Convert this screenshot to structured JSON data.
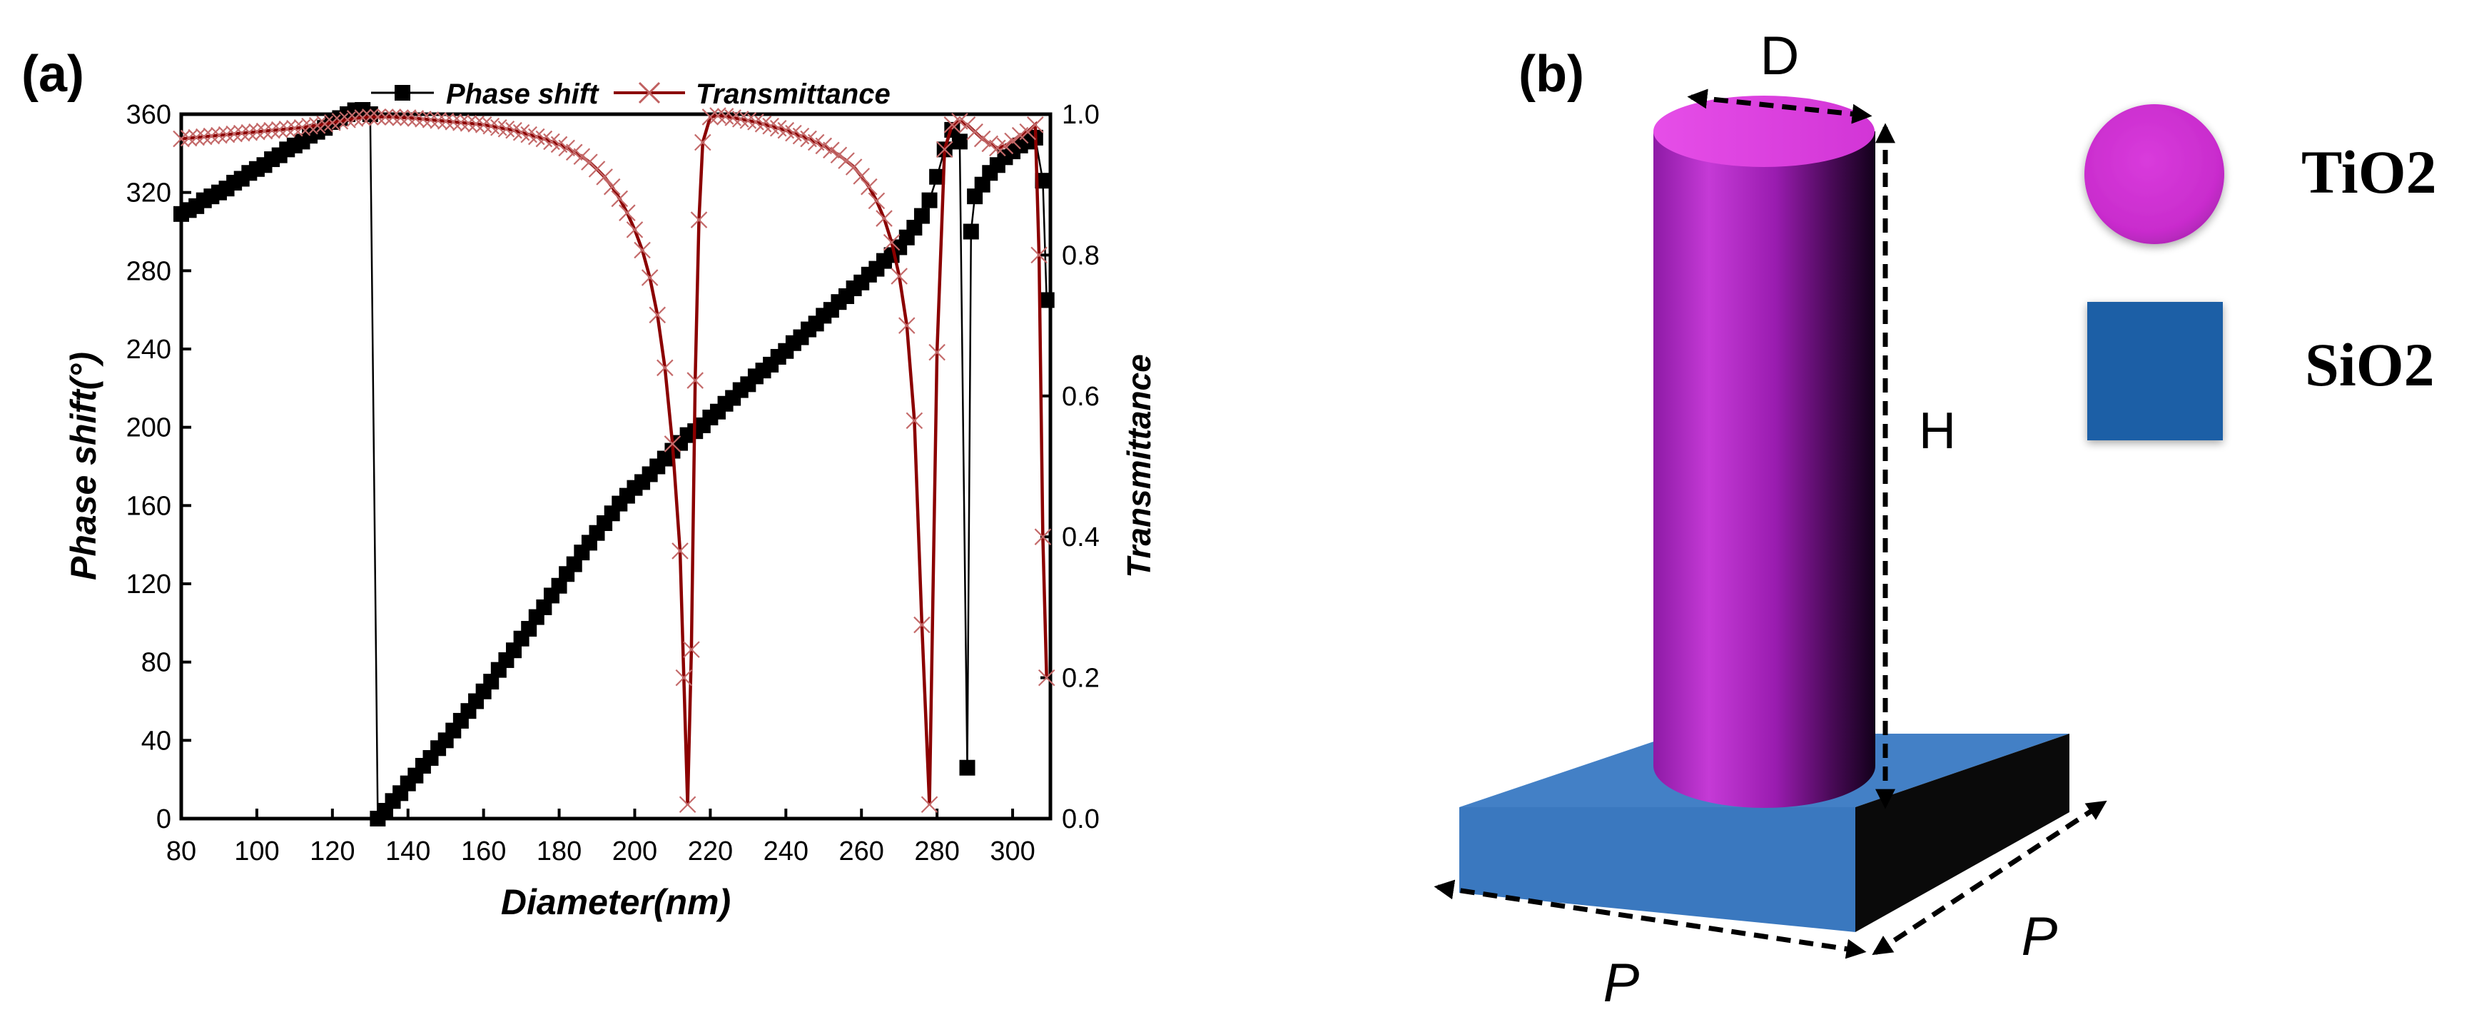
{
  "panel_a": {
    "label": "(a)"
  },
  "panel_b": {
    "label": "(b)",
    "dimension_d": "D",
    "dimension_h": "H",
    "dimension_p_front": "P",
    "dimension_p_side": "P",
    "legend": [
      {
        "name": "TiO2",
        "shape": "circle",
        "color": "#d12fd6"
      },
      {
        "name": "SiO2",
        "shape": "square",
        "color": "#1f5fa6"
      }
    ],
    "pillar_color": "#b524c8",
    "substrate_color": "#3f7dc8"
  },
  "chart_data": {
    "type": "line",
    "xlabel": "Diameter(nm)",
    "ylabel": "Phase shift(°)",
    "y2label": "Transmittance",
    "xlim": [
      80,
      310
    ],
    "ylim": [
      0,
      360
    ],
    "y2lim": [
      0,
      1.0
    ],
    "xticks": [
      80,
      100,
      120,
      140,
      160,
      180,
      200,
      220,
      240,
      260,
      280,
      300
    ],
    "yticks": [
      0,
      40,
      80,
      120,
      160,
      200,
      240,
      280,
      320,
      360
    ],
    "y2ticks": [
      "0.0",
      "0.2",
      "0.4",
      "0.6",
      "0.8",
      "1.0"
    ],
    "legend": [
      "Phase shift",
      "Transmittance"
    ],
    "series": [
      {
        "name": "Phase shift",
        "color": "#000000",
        "marker": "square",
        "axis": "left",
        "points": [
          [
            80,
            309
          ],
          [
            82,
            311
          ],
          [
            84,
            313
          ],
          [
            86,
            316
          ],
          [
            88,
            318
          ],
          [
            90,
            320
          ],
          [
            92,
            322
          ],
          [
            94,
            325
          ],
          [
            96,
            327
          ],
          [
            98,
            330
          ],
          [
            100,
            332
          ],
          [
            102,
            334
          ],
          [
            104,
            337
          ],
          [
            106,
            339
          ],
          [
            108,
            342
          ],
          [
            110,
            344
          ],
          [
            112,
            346
          ],
          [
            114,
            349
          ],
          [
            116,
            351
          ],
          [
            118,
            353
          ],
          [
            120,
            356
          ],
          [
            122,
            358
          ],
          [
            124,
            360
          ],
          [
            126,
            362
          ],
          [
            128,
            364
          ],
          [
            130,
            360
          ],
          [
            132,
            0
          ],
          [
            134,
            4
          ],
          [
            136,
            9
          ],
          [
            138,
            13
          ],
          [
            140,
            18
          ],
          [
            142,
            22
          ],
          [
            144,
            27
          ],
          [
            146,
            31
          ],
          [
            148,
            36
          ],
          [
            150,
            40
          ],
          [
            152,
            45
          ],
          [
            154,
            50
          ],
          [
            156,
            55
          ],
          [
            158,
            60
          ],
          [
            160,
            65
          ],
          [
            162,
            70
          ],
          [
            164,
            76
          ],
          [
            166,
            81
          ],
          [
            168,
            86
          ],
          [
            170,
            92
          ],
          [
            172,
            97
          ],
          [
            174,
            103
          ],
          [
            176,
            108
          ],
          [
            178,
            114
          ],
          [
            180,
            119
          ],
          [
            182,
            125
          ],
          [
            184,
            130
          ],
          [
            186,
            136
          ],
          [
            188,
            141
          ],
          [
            190,
            146
          ],
          [
            192,
            151
          ],
          [
            194,
            156
          ],
          [
            196,
            161
          ],
          [
            198,
            165
          ],
          [
            200,
            169
          ],
          [
            202,
            172
          ],
          [
            204,
            176
          ],
          [
            206,
            180
          ],
          [
            208,
            184
          ],
          [
            210,
            188
          ],
          [
            212,
            192
          ],
          [
            214,
            196
          ],
          [
            216,
            198
          ],
          [
            218,
            201
          ],
          [
            220,
            205
          ],
          [
            222,
            208
          ],
          [
            224,
            212
          ],
          [
            226,
            215
          ],
          [
            228,
            219
          ],
          [
            230,
            222
          ],
          [
            232,
            226
          ],
          [
            234,
            229
          ],
          [
            236,
            232
          ],
          [
            238,
            236
          ],
          [
            240,
            239
          ],
          [
            242,
            243
          ],
          [
            244,
            246
          ],
          [
            246,
            250
          ],
          [
            248,
            253
          ],
          [
            250,
            257
          ],
          [
            252,
            260
          ],
          [
            254,
            264
          ],
          [
            256,
            267
          ],
          [
            258,
            271
          ],
          [
            260,
            274
          ],
          [
            262,
            278
          ],
          [
            264,
            281
          ],
          [
            266,
            285
          ],
          [
            268,
            288
          ],
          [
            270,
            292
          ],
          [
            272,
            297
          ],
          [
            274,
            302
          ],
          [
            276,
            308
          ],
          [
            278,
            316
          ],
          [
            280,
            328
          ],
          [
            282,
            342
          ],
          [
            284,
            352
          ],
          [
            286,
            346
          ],
          [
            288,
            26
          ],
          [
            289,
            300
          ],
          [
            290,
            318
          ],
          [
            292,
            324
          ],
          [
            294,
            330
          ],
          [
            296,
            334
          ],
          [
            298,
            338
          ],
          [
            300,
            341
          ],
          [
            302,
            344
          ],
          [
            304,
            346
          ],
          [
            306,
            348
          ],
          [
            308,
            326
          ],
          [
            309,
            265
          ]
        ]
      },
      {
        "name": "Transmittance",
        "color": "#8b0000",
        "marker": "x",
        "axis": "right",
        "points": [
          [
            80,
            0.965
          ],
          [
            82,
            0.966
          ],
          [
            84,
            0.967
          ],
          [
            86,
            0.968
          ],
          [
            88,
            0.969
          ],
          [
            90,
            0.97
          ],
          [
            92,
            0.971
          ],
          [
            94,
            0.972
          ],
          [
            96,
            0.973
          ],
          [
            98,
            0.974
          ],
          [
            100,
            0.975
          ],
          [
            102,
            0.976
          ],
          [
            104,
            0.977
          ],
          [
            106,
            0.978
          ],
          [
            108,
            0.979
          ],
          [
            110,
            0.98
          ],
          [
            112,
            0.981
          ],
          [
            114,
            0.983
          ],
          [
            116,
            0.984
          ],
          [
            118,
            0.986
          ],
          [
            120,
            0.988
          ],
          [
            122,
            0.99
          ],
          [
            124,
            0.992
          ],
          [
            126,
            0.994
          ],
          [
            128,
            0.995
          ],
          [
            130,
            0.996
          ],
          [
            132,
            0.996
          ],
          [
            134,
            0.996
          ],
          [
            136,
            0.996
          ],
          [
            138,
            0.995
          ],
          [
            140,
            0.995
          ],
          [
            142,
            0.994
          ],
          [
            144,
            0.993
          ],
          [
            146,
            0.992
          ],
          [
            148,
            0.991
          ],
          [
            150,
            0.99
          ],
          [
            152,
            0.989
          ],
          [
            154,
            0.988
          ],
          [
            156,
            0.987
          ],
          [
            158,
            0.986
          ],
          [
            160,
            0.985
          ],
          [
            162,
            0.983
          ],
          [
            164,
            0.981
          ],
          [
            166,
            0.979
          ],
          [
            168,
            0.977
          ],
          [
            170,
            0.974
          ],
          [
            172,
            0.971
          ],
          [
            174,
            0.968
          ],
          [
            176,
            0.965
          ],
          [
            178,
            0.961
          ],
          [
            180,
            0.957
          ],
          [
            182,
            0.952
          ],
          [
            184,
            0.946
          ],
          [
            186,
            0.94
          ],
          [
            188,
            0.932
          ],
          [
            190,
            0.922
          ],
          [
            192,
            0.911
          ],
          [
            194,
            0.897
          ],
          [
            196,
            0.88
          ],
          [
            198,
            0.86
          ],
          [
            200,
            0.836
          ],
          [
            202,
            0.807
          ],
          [
            204,
            0.768
          ],
          [
            206,
            0.715
          ],
          [
            208,
            0.64
          ],
          [
            210,
            0.532
          ],
          [
            212,
            0.38
          ],
          [
            213,
            0.2
          ],
          [
            214,
            0.02
          ],
          [
            215,
            0.24
          ],
          [
            216,
            0.622
          ],
          [
            217,
            0.85
          ],
          [
            218,
            0.96
          ],
          [
            220,
            0.996
          ],
          [
            222,
            0.998
          ],
          [
            224,
            0.997
          ],
          [
            226,
            0.995
          ],
          [
            228,
            0.993
          ],
          [
            230,
            0.991
          ],
          [
            232,
            0.989
          ],
          [
            234,
            0.986
          ],
          [
            236,
            0.983
          ],
          [
            238,
            0.98
          ],
          [
            240,
            0.977
          ],
          [
            242,
            0.973
          ],
          [
            244,
            0.969
          ],
          [
            246,
            0.965
          ],
          [
            248,
            0.96
          ],
          [
            250,
            0.955
          ],
          [
            252,
            0.949
          ],
          [
            254,
            0.942
          ],
          [
            256,
            0.934
          ],
          [
            258,
            0.925
          ],
          [
            260,
            0.912
          ],
          [
            262,
            0.897
          ],
          [
            264,
            0.877
          ],
          [
            266,
            0.852
          ],
          [
            268,
            0.818
          ],
          [
            270,
            0.77
          ],
          [
            272,
            0.7
          ],
          [
            274,
            0.565
          ],
          [
            276,
            0.275
          ],
          [
            278,
            0.02
          ],
          [
            280,
            0.662
          ],
          [
            282,
            0.95
          ],
          [
            284,
            0.985
          ],
          [
            286,
            0.99
          ],
          [
            288,
            0.985
          ],
          [
            290,
            0.975
          ],
          [
            292,
            0.965
          ],
          [
            294,
            0.958
          ],
          [
            296,
            0.952
          ],
          [
            298,
            0.955
          ],
          [
            300,
            0.962
          ],
          [
            302,
            0.97
          ],
          [
            304,
            0.975
          ],
          [
            306,
            0.985
          ],
          [
            307,
            0.8
          ],
          [
            308,
            0.4
          ],
          [
            309,
            0.2
          ]
        ]
      }
    ]
  }
}
